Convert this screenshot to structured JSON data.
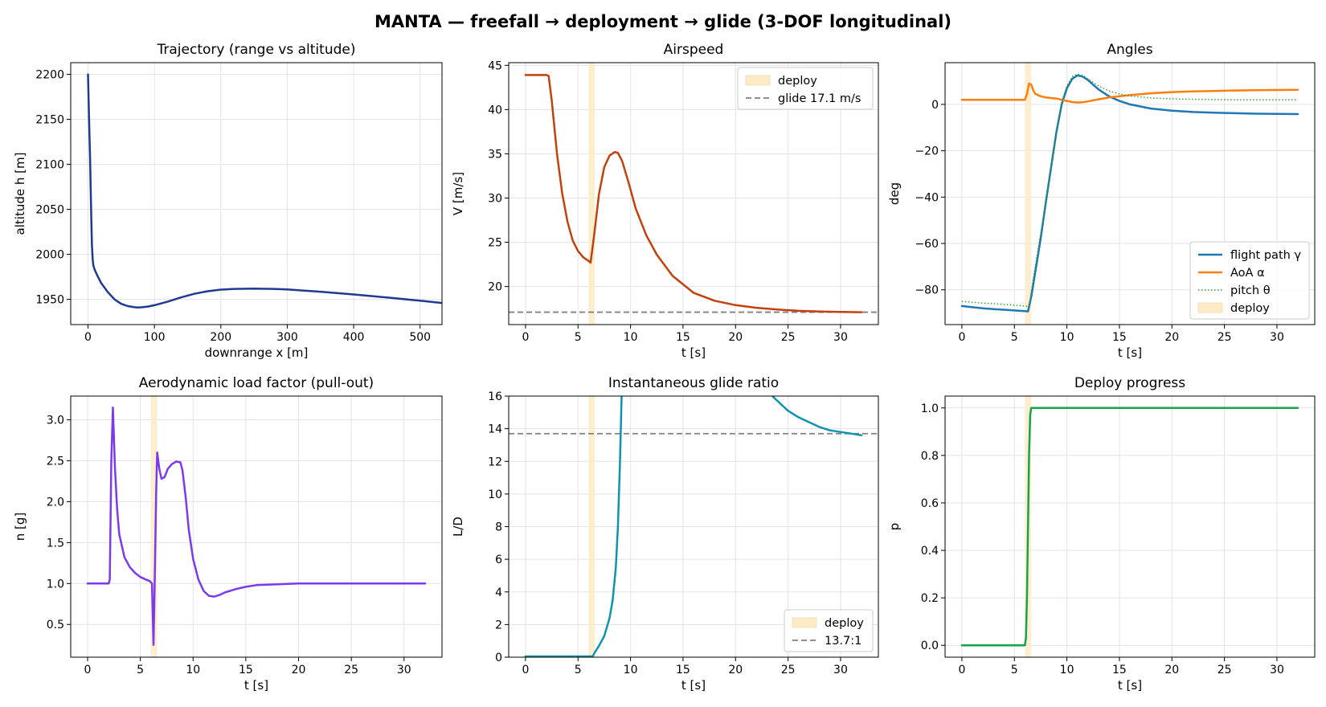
{
  "figure": {
    "title": "MANTA — freefall → deployment → glide (3-DOF longitudinal)",
    "colors": {
      "trajectory": "#1f3a93",
      "airspeed": "#c2410c",
      "flight_path": "#1f77b4",
      "aoa": "#ff7f0e",
      "pitch": "#2ca02c",
      "load_factor": "#7c3aed",
      "glide_ratio": "#0e93b0",
      "deploy_progress": "#16a34a",
      "deploy_band": "#fdebc8",
      "ref_line": "#808080"
    }
  },
  "chart_data": [
    {
      "id": "trajectory",
      "type": "line",
      "title": "Trajectory (range vs altitude)",
      "xlabel": "downrange x [m]",
      "ylabel": "altitude h [m]",
      "xlim": [
        -26,
        533
      ],
      "ylim": [
        1922,
        2213
      ],
      "xticks": [
        0,
        100,
        200,
        300,
        400,
        500
      ],
      "yticks": [
        1950,
        2000,
        2050,
        2100,
        2150,
        2200
      ],
      "grid": true,
      "series": [
        {
          "color_key": "trajectory",
          "x": [
            0,
            1,
            2,
            3,
            4,
            5,
            6,
            7,
            8,
            10,
            15,
            20,
            30,
            40,
            50,
            60,
            70,
            75,
            80,
            90,
            100,
            120,
            140,
            160,
            180,
            200,
            220,
            250,
            280,
            300,
            350,
            400,
            450,
            500,
            533
          ],
          "y": [
            2200,
            2170,
            2140,
            2110,
            2075,
            2040,
            2010,
            1995,
            1988,
            1983,
            1975,
            1968,
            1958,
            1950,
            1945,
            1942.5,
            1941.3,
            1941,
            1941.2,
            1942,
            1943.5,
            1947.5,
            1952.2,
            1956.2,
            1959,
            1960.8,
            1961.6,
            1962,
            1961.6,
            1961,
            1958.5,
            1955.5,
            1952.2,
            1948.5,
            1946
          ]
        }
      ]
    },
    {
      "id": "airspeed",
      "type": "line",
      "title": "Airspeed",
      "xlabel": "t [s]",
      "ylabel": "V [m/s]",
      "xlim": [
        -1.6,
        33.6
      ],
      "ylim": [
        15.7,
        45.3
      ],
      "xticks": [
        0,
        5,
        10,
        15,
        20,
        25,
        30
      ],
      "yticks": [
        20,
        25,
        30,
        35,
        40,
        45
      ],
      "grid": true,
      "deploy_band": [
        6,
        6.6
      ],
      "ref_line": {
        "y": 17.1,
        "label": "glide 17.1 m/s"
      },
      "legend": {
        "position": "upper-right",
        "entries": [
          "deploy",
          "glide 17.1 m/s"
        ]
      },
      "series": [
        {
          "color_key": "airspeed",
          "x": [
            0,
            1,
            2,
            2.2,
            2.5,
            3,
            3.5,
            4,
            4.5,
            5,
            5.5,
            6,
            6.2,
            6.5,
            7,
            7.5,
            8,
            8.5,
            8.8,
            9.2,
            9.8,
            10.5,
            11.5,
            12.5,
            14,
            16,
            18,
            20,
            22,
            24,
            26,
            28,
            30,
            32
          ],
          "y": [
            43.9,
            43.9,
            43.9,
            43.8,
            41,
            35,
            30.5,
            27.3,
            25.2,
            24,
            23.3,
            22.9,
            22.7,
            25.5,
            30.5,
            33.5,
            34.8,
            35.2,
            35.1,
            34.2,
            31.8,
            28.8,
            25.8,
            23.6,
            21.2,
            19.3,
            18.4,
            17.9,
            17.6,
            17.4,
            17.25,
            17.18,
            17.13,
            17.1
          ]
        }
      ]
    },
    {
      "id": "angles",
      "type": "line",
      "title": "Angles",
      "xlabel": "t [s]",
      "ylabel": "deg",
      "xlim": [
        -1.6,
        33.6
      ],
      "ylim": [
        -95,
        18
      ],
      "xticks": [
        0,
        5,
        10,
        15,
        20,
        25,
        30
      ],
      "yticks": [
        -80,
        -60,
        -40,
        -20,
        0
      ],
      "grid": true,
      "deploy_band": [
        6,
        6.6
      ],
      "legend": {
        "position": "lower-right",
        "entries": [
          "flight path γ",
          "AoA α",
          "pitch θ",
          "deploy"
        ]
      },
      "series": [
        {
          "name": "flight path γ",
          "color_key": "flight_path",
          "style": "solid",
          "x": [
            0,
            1,
            2,
            3,
            4,
            5,
            6,
            6.3,
            6.6,
            7,
            7.5,
            8,
            8.5,
            9,
            9.5,
            10,
            10.5,
            11,
            11.5,
            12,
            12.5,
            13,
            14,
            15,
            16,
            18,
            20,
            22,
            24,
            26,
            28,
            30,
            32
          ],
          "y": [
            -87,
            -87.5,
            -88,
            -88.3,
            -88.6,
            -88.9,
            -89.2,
            -89.3,
            -83,
            -72,
            -58,
            -42,
            -27,
            -12,
            0,
            7,
            11,
            12.5,
            12,
            10.5,
            8.5,
            6.5,
            3.5,
            1.5,
            0,
            -1.8,
            -2.7,
            -3.3,
            -3.6,
            -3.8,
            -4,
            -4.1,
            -4.2
          ]
        },
        {
          "name": "AoA α",
          "color_key": "aoa",
          "style": "solid",
          "x": [
            0,
            2,
            4,
            6,
            6.2,
            6.4,
            6.6,
            6.8,
            7,
            7.5,
            8,
            9,
            9.5,
            10,
            10.5,
            11,
            11.5,
            12,
            13,
            14,
            16,
            18,
            20,
            22,
            24,
            26,
            28,
            30,
            32
          ],
          "y": [
            2,
            2,
            2,
            2,
            4.5,
            9,
            8.5,
            6,
            4.5,
            3.5,
            3,
            2.5,
            2,
            1.5,
            1,
            0.8,
            0.9,
            1.3,
            2.2,
            3,
            4,
            4.8,
            5.3,
            5.6,
            5.8,
            6,
            6.1,
            6.2,
            6.3
          ]
        },
        {
          "name": "pitch θ",
          "color_key": "pitch",
          "style": "dotted",
          "x": [
            0,
            2,
            4,
            6,
            6.4,
            6.8,
            7.2,
            7.6,
            8,
            8.5,
            9,
            9.5,
            10,
            10.5,
            11,
            11.5,
            12,
            13,
            14,
            15,
            16,
            18,
            20,
            22,
            24,
            26,
            28,
            30,
            32
          ],
          "y": [
            -85,
            -85.7,
            -86.3,
            -87,
            -87.2,
            -75,
            -64,
            -53,
            -42,
            -27,
            -12,
            1,
            8,
            12,
            13,
            12.5,
            11,
            8,
            5.8,
            4.5,
            3.6,
            2.8,
            2.4,
            2.2,
            2.1,
            2,
            2,
            2,
            2
          ]
        }
      ]
    },
    {
      "id": "load_factor",
      "type": "line",
      "title": "Aerodynamic load factor (pull-out)",
      "xlabel": "t [s]",
      "ylabel": "n [g]",
      "xlim": [
        -1.6,
        33.6
      ],
      "ylim": [
        0.1,
        3.29
      ],
      "xticks": [
        0,
        5,
        10,
        15,
        20,
        25,
        30
      ],
      "yticks": [
        0.5,
        1.0,
        1.5,
        2.0,
        2.5,
        3.0
      ],
      "grid": true,
      "deploy_band": [
        6,
        6.6
      ],
      "series": [
        {
          "color_key": "load_factor",
          "x": [
            0,
            1,
            2,
            2.1,
            2.25,
            2.4,
            2.6,
            2.8,
            3,
            3.5,
            4,
            4.5,
            5,
            5.5,
            5.9,
            6.1,
            6.2,
            6.25,
            6.35,
            6.5,
            6.6,
            6.8,
            7,
            7.3,
            7.6,
            8,
            8.4,
            8.8,
            9,
            9.3,
            9.6,
            10,
            10.5,
            11,
            11.5,
            12,
            12.5,
            13,
            14,
            15,
            16,
            18,
            20,
            22,
            24,
            26,
            28,
            30,
            32
          ],
          "y": [
            1,
            1,
            1,
            1.05,
            2.5,
            3.15,
            2.4,
            1.9,
            1.6,
            1.32,
            1.2,
            1.13,
            1.08,
            1.05,
            1.03,
            1,
            0.5,
            0.25,
            0.9,
            2.1,
            2.6,
            2.4,
            2.28,
            2.3,
            2.4,
            2.46,
            2.49,
            2.48,
            2.38,
            2.05,
            1.65,
            1.3,
            1.05,
            0.91,
            0.85,
            0.84,
            0.86,
            0.89,
            0.93,
            0.96,
            0.98,
            0.99,
            1,
            1,
            1,
            1,
            1,
            1,
            1
          ]
        }
      ]
    },
    {
      "id": "glide_ratio",
      "type": "line",
      "title": "Instantaneous glide ratio",
      "xlabel": "t [s]",
      "ylabel": "L/D",
      "xlim": [
        -1.6,
        33.6
      ],
      "ylim": [
        0,
        16
      ],
      "xticks": [
        0,
        5,
        10,
        15,
        20,
        25,
        30
      ],
      "yticks": [
        0,
        2,
        4,
        6,
        8,
        10,
        12,
        14,
        16
      ],
      "grid": true,
      "deploy_band": [
        6,
        6.6
      ],
      "ref_line": {
        "y": 13.7,
        "label": "13.7:1"
      },
      "legend": {
        "position": "lower-right",
        "entries": [
          "deploy",
          "13.7:1"
        ]
      },
      "series": [
        {
          "color_key": "glide_ratio",
          "x": [
            0,
            3,
            6,
            6.4,
            6.6,
            7,
            7.5,
            8,
            8.3,
            8.6,
            8.8,
            9,
            9.15
          ],
          "y": [
            0.05,
            0.05,
            0.05,
            0.05,
            0.3,
            0.7,
            1.3,
            2.4,
            3.5,
            5.5,
            8,
            12,
            16
          ]
        },
        {
          "color_key": "glide_ratio",
          "x": [
            23.5,
            24,
            25,
            26,
            27,
            28,
            29,
            30,
            31,
            32
          ],
          "y": [
            16,
            15.7,
            15.1,
            14.7,
            14.4,
            14.1,
            13.9,
            13.8,
            13.7,
            13.6
          ]
        }
      ]
    },
    {
      "id": "deploy_progress",
      "type": "line",
      "title": "Deploy progress",
      "xlabel": "t [s]",
      "ylabel": "p",
      "xlim": [
        -1.6,
        33.6
      ],
      "ylim": [
        -0.05,
        1.05
      ],
      "xticks": [
        0,
        5,
        10,
        15,
        20,
        25,
        30
      ],
      "yticks": [
        0.0,
        0.2,
        0.4,
        0.6,
        0.8,
        1.0
      ],
      "grid": true,
      "deploy_band": [
        6,
        6.6
      ],
      "series": [
        {
          "color_key": "deploy_progress",
          "x": [
            0,
            6,
            6.1,
            6.2,
            6.3,
            6.4,
            6.5,
            6.6,
            7,
            32
          ],
          "y": [
            0,
            0,
            0.03,
            0.2,
            0.5,
            0.8,
            0.97,
            1,
            1,
            1
          ]
        }
      ]
    }
  ]
}
